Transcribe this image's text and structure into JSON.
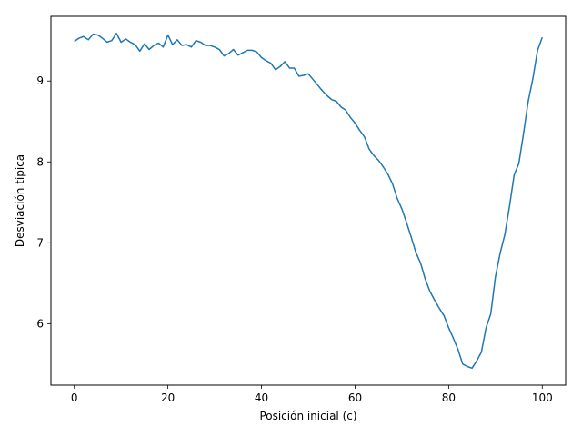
{
  "chart_data": {
    "type": "line",
    "title": "",
    "xlabel": "Posición inicial (c)",
    "ylabel": "Desviación típica",
    "xlim": [
      -5,
      105
    ],
    "ylim": [
      5.24,
      9.8
    ],
    "xticks": [
      0,
      20,
      40,
      60,
      80,
      100
    ],
    "yticks": [
      6,
      7,
      8,
      9
    ],
    "grid": false,
    "line_color": "#1f77b4",
    "series": [
      {
        "x": [
          0,
          1,
          2,
          3,
          4,
          5,
          6,
          7,
          8,
          9,
          10,
          11,
          12,
          13,
          14,
          15,
          16,
          17,
          18,
          19,
          20,
          21,
          22,
          23,
          24,
          25,
          26,
          27,
          28,
          29,
          30,
          31,
          32,
          33,
          34,
          35,
          36,
          37,
          38,
          39,
          40,
          41,
          42,
          43,
          44,
          45,
          46,
          47,
          48,
          49,
          50,
          51,
          52,
          53,
          54,
          55,
          56,
          57,
          58,
          59,
          60,
          61,
          62,
          63,
          64,
          65,
          66,
          67,
          68,
          69,
          70,
          71,
          72,
          73,
          74,
          75,
          76,
          77,
          78,
          79,
          80,
          81,
          82,
          83,
          84,
          85,
          86,
          87,
          88,
          89,
          90,
          91,
          92,
          93,
          94,
          95,
          96,
          97,
          98,
          99,
          100
        ],
        "y": [
          9.49,
          9.53,
          9.55,
          9.51,
          9.58,
          9.57,
          9.53,
          9.48,
          9.5,
          9.59,
          9.48,
          9.52,
          9.48,
          9.45,
          9.37,
          9.46,
          9.39,
          9.44,
          9.47,
          9.42,
          9.57,
          9.45,
          9.51,
          9.44,
          9.45,
          9.42,
          9.5,
          9.48,
          9.44,
          9.44,
          9.42,
          9.39,
          9.31,
          9.34,
          9.39,
          9.32,
          9.35,
          9.38,
          9.38,
          9.36,
          9.29,
          9.25,
          9.22,
          9.14,
          9.18,
          9.24,
          9.16,
          9.16,
          9.06,
          9.07,
          9.09,
          9.02,
          8.95,
          8.88,
          8.82,
          8.77,
          8.75,
          8.68,
          8.64,
          8.55,
          8.48,
          8.39,
          8.31,
          8.16,
          8.08,
          8.02,
          7.94,
          7.85,
          7.73,
          7.55,
          7.42,
          7.25,
          7.07,
          6.88,
          6.75,
          6.55,
          6.4,
          6.29,
          6.19,
          6.1,
          5.95,
          5.82,
          5.68,
          5.5,
          5.47,
          5.45,
          5.54,
          5.65,
          5.95,
          6.12,
          6.58,
          6.87,
          7.1,
          7.45,
          7.84,
          7.98,
          8.35,
          8.75,
          9.03,
          9.38,
          9.54
        ]
      }
    ]
  }
}
